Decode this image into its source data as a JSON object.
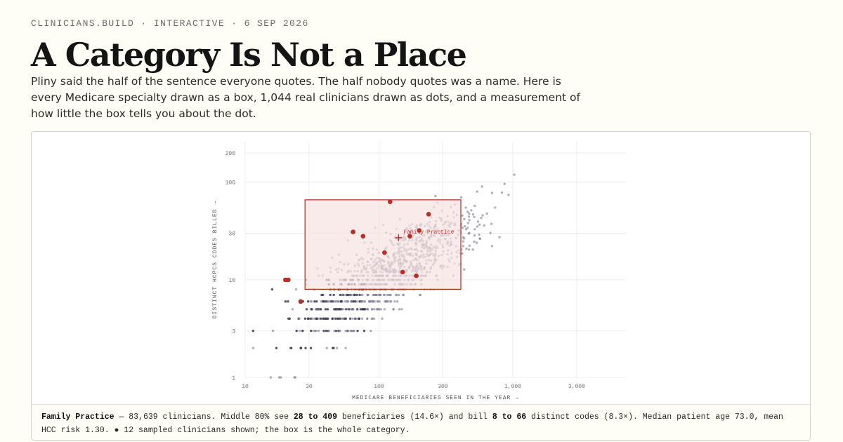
{
  "header": {
    "kicker": "CLINICIANS.BUILD · INTERACTIVE · 6 SEP 2026",
    "title": "A Category Is Not a Place",
    "lede": "Pliny said the half of the sentence everyone quotes. The half nobody quotes was a name. Here is every Medicare specialty drawn as a box, 1,044 real clinicians drawn as dots, and a measurement of how little the box tells you about the dot."
  },
  "chart_data": {
    "type": "scatter",
    "xscale": "log",
    "yscale": "log",
    "xlim": [
      10,
      7000
    ],
    "ylim": [
      1,
      260
    ],
    "grid": true,
    "xlabel": "MEDICARE BENEFICIARIES SEEN IN THE YEAR →",
    "ylabel": "DISTINCT HCPCS CODES BILLED →",
    "x_ticks": [
      {
        "value": 10,
        "label": "10"
      },
      {
        "value": 30,
        "label": "30"
      },
      {
        "value": 100,
        "label": "100"
      },
      {
        "value": 300,
        "label": "300"
      },
      {
        "value": 1000,
        "label": "1,000"
      },
      {
        "value": 3000,
        "label": "3,000"
      }
    ],
    "y_ticks": [
      {
        "value": 1,
        "label": "1"
      },
      {
        "value": 3,
        "label": "3"
      },
      {
        "value": 10,
        "label": "10"
      },
      {
        "value": 30,
        "label": "30"
      },
      {
        "value": 100,
        "label": "100"
      },
      {
        "value": 200,
        "label": "200"
      }
    ],
    "box": {
      "label": "Family Practice",
      "x_range": [
        28,
        409
      ],
      "y_range": [
        8,
        66
      ],
      "median": [
        140,
        27
      ]
    },
    "sampled": [
      [
        20,
        10
      ],
      [
        21,
        10
      ],
      [
        26,
        6
      ],
      [
        64,
        31
      ],
      [
        76,
        28
      ],
      [
        110,
        19
      ],
      [
        121,
        63
      ],
      [
        150,
        12
      ],
      [
        170,
        28
      ],
      [
        190,
        11
      ],
      [
        200,
        32
      ],
      [
        235,
        47
      ]
    ],
    "points_count": 1044,
    "colors": {
      "dot": "#7d7d95",
      "dot_dense": "#3e3e55",
      "box_fill": "#f7e3e1",
      "box_stroke": "#b53a30",
      "sampled": "#b62f25",
      "grid": "#ececec"
    }
  },
  "caption": {
    "specialty": "Family Practice",
    "text_1": " — 83,639 clinicians. Middle 80% see ",
    "bene_range": "28 to 409",
    "text_2": " beneficiaries (14.6×) and bill ",
    "code_range": "8 to 66",
    "text_3": " distinct codes (8.3×). Median patient age 73.0, mean HCC risk 1.30. ● 12 sampled clinicians shown; the box is the whole category."
  }
}
